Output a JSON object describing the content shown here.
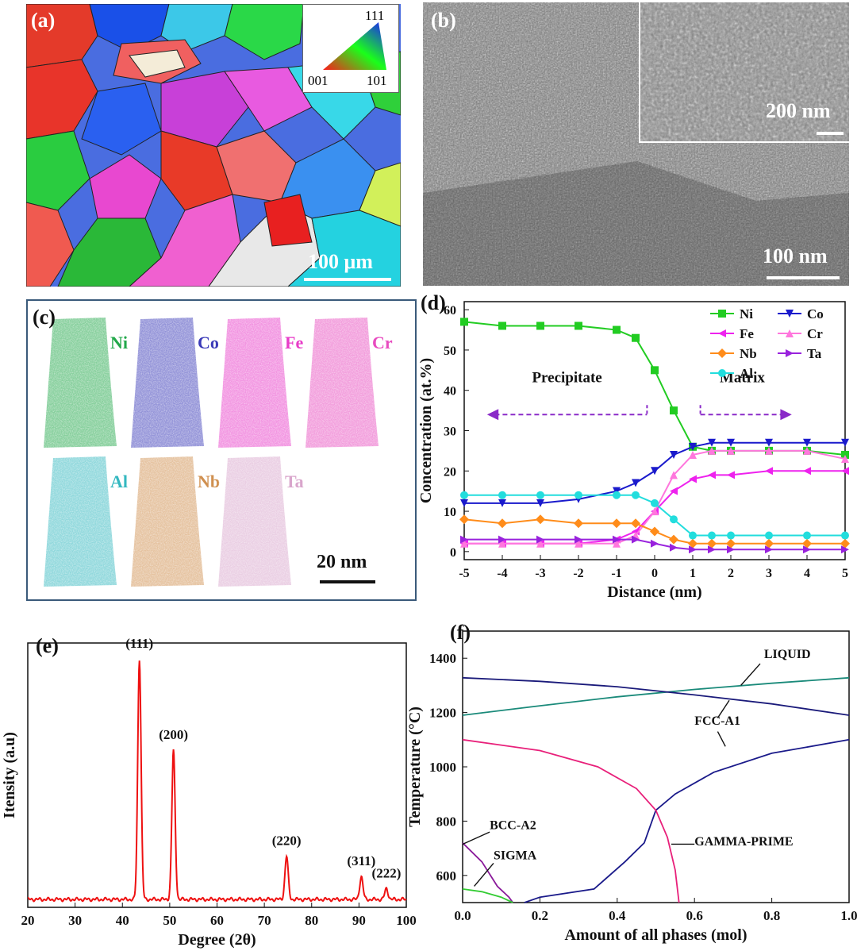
{
  "panel_a": {
    "label": "(a)",
    "scale_bar": "100 μm",
    "ipf": {
      "top": "111",
      "bottom_left": "001",
      "bottom_right": "101"
    }
  },
  "panel_b": {
    "label": "(b)",
    "inset_scale": "200 nm",
    "main_scale": "100 nm"
  },
  "panel_c": {
    "label": "(c)",
    "elements": [
      {
        "name": "Ni",
        "color": "#22a84a"
      },
      {
        "name": "Co",
        "color": "#3a3ab8"
      },
      {
        "name": "Fe",
        "color": "#e83cc8"
      },
      {
        "name": "Cr",
        "color": "#e84cc0"
      },
      {
        "name": "Al",
        "color": "#34b8c0"
      },
      {
        "name": "Nb",
        "color": "#d09050"
      },
      {
        "name": "Ta",
        "color": "#d9a6cc"
      }
    ],
    "scale_bar": "20 nm"
  },
  "panel_d": {
    "label": "(d)",
    "annot_left": "Precipitate",
    "annot_right": "Matrix",
    "chart_data": {
      "type": "line",
      "title": "",
      "xlabel": "Distance (nm)",
      "ylabel": "Concentration (at.%)",
      "xlim": [
        -5,
        5
      ],
      "ylim": [
        -2,
        62
      ],
      "xticks": [
        "-5",
        "-4",
        "-3",
        "-2",
        "-1",
        "0",
        "1",
        "2",
        "3",
        "4",
        "5"
      ],
      "yticks": [
        "0",
        "10",
        "20",
        "30",
        "40",
        "50",
        "60"
      ],
      "x": [
        -5,
        -4,
        -3,
        -2,
        -1,
        -0.5,
        0,
        0.5,
        1,
        1.5,
        2,
        3,
        4,
        5
      ],
      "series": [
        {
          "name": "Ni",
          "color": "#22cc22",
          "marker": "square",
          "values": [
            57,
            56,
            56,
            56,
            55,
            53,
            45,
            35,
            26,
            25,
            25,
            25,
            25,
            24
          ]
        },
        {
          "name": "Co",
          "color": "#1a1acc",
          "marker": "triangle-down",
          "values": [
            12,
            12,
            12,
            13,
            15,
            17,
            20,
            24,
            26,
            27,
            27,
            27,
            27,
            27
          ]
        },
        {
          "name": "Fe",
          "color": "#ee22ee",
          "marker": "triangle-left",
          "values": [
            2,
            2,
            2,
            2,
            3,
            5,
            10,
            15,
            18,
            19,
            19,
            20,
            20,
            20
          ]
        },
        {
          "name": "Cr",
          "color": "#ff77dd",
          "marker": "triangle-up",
          "values": [
            2,
            2,
            2,
            2,
            2,
            4,
            10,
            19,
            24,
            25,
            25,
            25,
            25,
            23
          ]
        },
        {
          "name": "Nb",
          "color": "#ff8c1a",
          "marker": "diamond",
          "values": [
            8,
            7,
            8,
            7,
            7,
            7,
            5,
            3,
            2,
            2,
            2,
            2,
            2,
            2
          ]
        },
        {
          "name": "Ta",
          "color": "#9922dd",
          "marker": "triangle-right",
          "values": [
            3,
            3,
            3,
            3,
            3,
            3,
            2,
            1,
            0.5,
            0.5,
            0.5,
            0.5,
            0.5,
            0.5
          ]
        },
        {
          "name": "Al",
          "color": "#22dddd",
          "marker": "circle",
          "values": [
            14,
            14,
            14,
            14,
            14,
            14,
            12,
            8,
            4,
            4,
            4,
            4,
            4,
            4
          ]
        }
      ],
      "legend": "top-right"
    }
  },
  "panel_e": {
    "label": "(e)",
    "chart_data": {
      "type": "line",
      "title": "",
      "xlabel": "Degree (2θ)",
      "ylabel": "Itensity (a.u)",
      "xlim": [
        20,
        100
      ],
      "xticks": [
        "20",
        "30",
        "40",
        "50",
        "60",
        "70",
        "80",
        "90",
        "100"
      ],
      "peaks": [
        {
          "label": "(111)",
          "x": 43.6,
          "height": 1.0
        },
        {
          "label": "(200)",
          "x": 50.8,
          "height": 0.62
        },
        {
          "label": "(220)",
          "x": 74.7,
          "height": 0.18
        },
        {
          "label": "(311)",
          "x": 90.5,
          "height": 0.095
        },
        {
          "label": "(222)",
          "x": 95.8,
          "height": 0.045
        }
      ],
      "color": "#ee1111"
    }
  },
  "panel_f": {
    "label": "(f)",
    "chart_data": {
      "type": "line",
      "title": "",
      "xlabel": "Amount of all phases (mol)",
      "ylabel": "Temperature (°C)",
      "xlim": [
        0,
        1.0
      ],
      "ylim": [
        500,
        1500
      ],
      "xticks": [
        "0.0",
        "0.2",
        "0.4",
        "0.6",
        "0.8",
        "1.0"
      ],
      "yticks": [
        "600",
        "800",
        "1000",
        "1200",
        "1400"
      ],
      "series": [
        {
          "name": "LIQUID",
          "color": "#1a8a7a",
          "points": [
            [
              0,
              1190
            ],
            [
              0.2,
              1225
            ],
            [
              0.4,
              1258
            ],
            [
              0.6,
              1285
            ],
            [
              0.8,
              1308
            ],
            [
              1.0,
              1328
            ]
          ]
        },
        {
          "name": "FCC-A1",
          "color": "#1a1a7a",
          "points": [
            [
              0,
              1328
            ],
            [
              0.2,
              1315
            ],
            [
              0.4,
              1295
            ],
            [
              0.6,
              1265
            ],
            [
              0.8,
              1232
            ],
            [
              1.0,
              1190
            ]
          ]
        },
        {
          "name": "FCC-A1 (lower)",
          "color": "#1a1a8a",
          "points": [
            [
              0.16,
              500
            ],
            [
              0.2,
              520
            ],
            [
              0.34,
              550
            ],
            [
              0.42,
              650
            ],
            [
              0.47,
              720
            ],
            [
              0.5,
              840
            ],
            [
              0.55,
              900
            ],
            [
              0.65,
              980
            ],
            [
              0.8,
              1050
            ],
            [
              1.0,
              1100
            ]
          ]
        },
        {
          "name": "GAMMA-PRIME",
          "color": "#e8207a",
          "points": [
            [
              0,
              1100
            ],
            [
              0.2,
              1060
            ],
            [
              0.35,
              1000
            ],
            [
              0.45,
              920
            ],
            [
              0.5,
              840
            ],
            [
              0.53,
              740
            ],
            [
              0.55,
              620
            ],
            [
              0.56,
              500
            ]
          ]
        },
        {
          "name": "BCC-A2",
          "color": "#8a1a9a",
          "points": [
            [
              0,
              720
            ],
            [
              0.05,
              650
            ],
            [
              0.09,
              560
            ],
            [
              0.12,
              520
            ],
            [
              0.13,
              500
            ]
          ]
        },
        {
          "name": "SIGMA",
          "color": "#33cc33",
          "points": [
            [
              0,
              550
            ],
            [
              0.05,
              540
            ],
            [
              0.1,
              520
            ],
            [
              0.13,
              500
            ]
          ]
        }
      ],
      "annotations": [
        "LIQUID",
        "FCC-A1",
        "BCC-A2",
        "SIGMA",
        "GAMMA-PRIME"
      ]
    }
  }
}
